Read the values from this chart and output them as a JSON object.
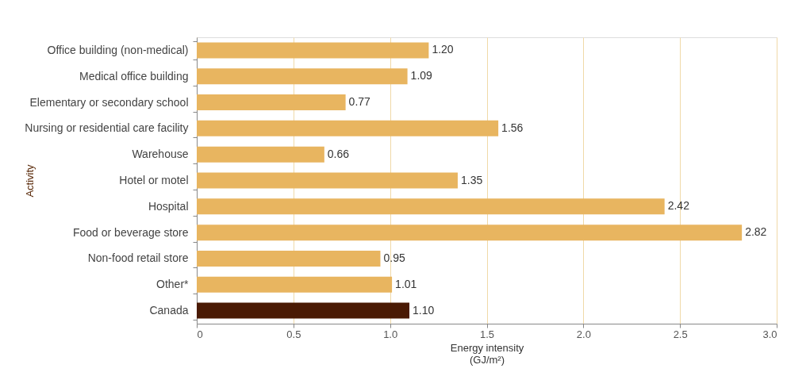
{
  "chart_data": {
    "type": "bar",
    "orientation": "horizontal",
    "ylabel": "Activity",
    "xlabel": "Energy intensity\n(GJ/m²)",
    "categories": [
      "Office building (non-medical)",
      "Medical office building",
      "Elementary or secondary school",
      "Nursing or residential care facility",
      "Warehouse",
      "Hotel or motel",
      "Hospital",
      "Food or beverage store",
      "Non-food retail store",
      "Other*",
      "Canada"
    ],
    "values": [
      1.2,
      1.09,
      0.77,
      1.56,
      0.66,
      1.35,
      2.42,
      2.82,
      0.95,
      1.01,
      1.1
    ],
    "value_labels": [
      "1.20",
      "1.09",
      "0.77",
      "1.56",
      "0.66",
      "1.35",
      "2.42",
      "2.82",
      "0.95",
      "1.01",
      "1.10"
    ],
    "colors": [
      "#e8b560",
      "#e8b560",
      "#e8b560",
      "#e8b560",
      "#e8b560",
      "#e8b560",
      "#e8b560",
      "#e8b560",
      "#e8b560",
      "#e8b560",
      "#4a1a04"
    ],
    "xlim": [
      0,
      3.0
    ],
    "xticks": [
      0,
      0.5,
      {
        "value": 1,
        "label": "1.0"
      },
      1.5,
      {
        "value": 2,
        "label": "2.0"
      },
      2.5,
      {
        "value": 3,
        "label": "3.0"
      }
    ],
    "grid": "x"
  }
}
